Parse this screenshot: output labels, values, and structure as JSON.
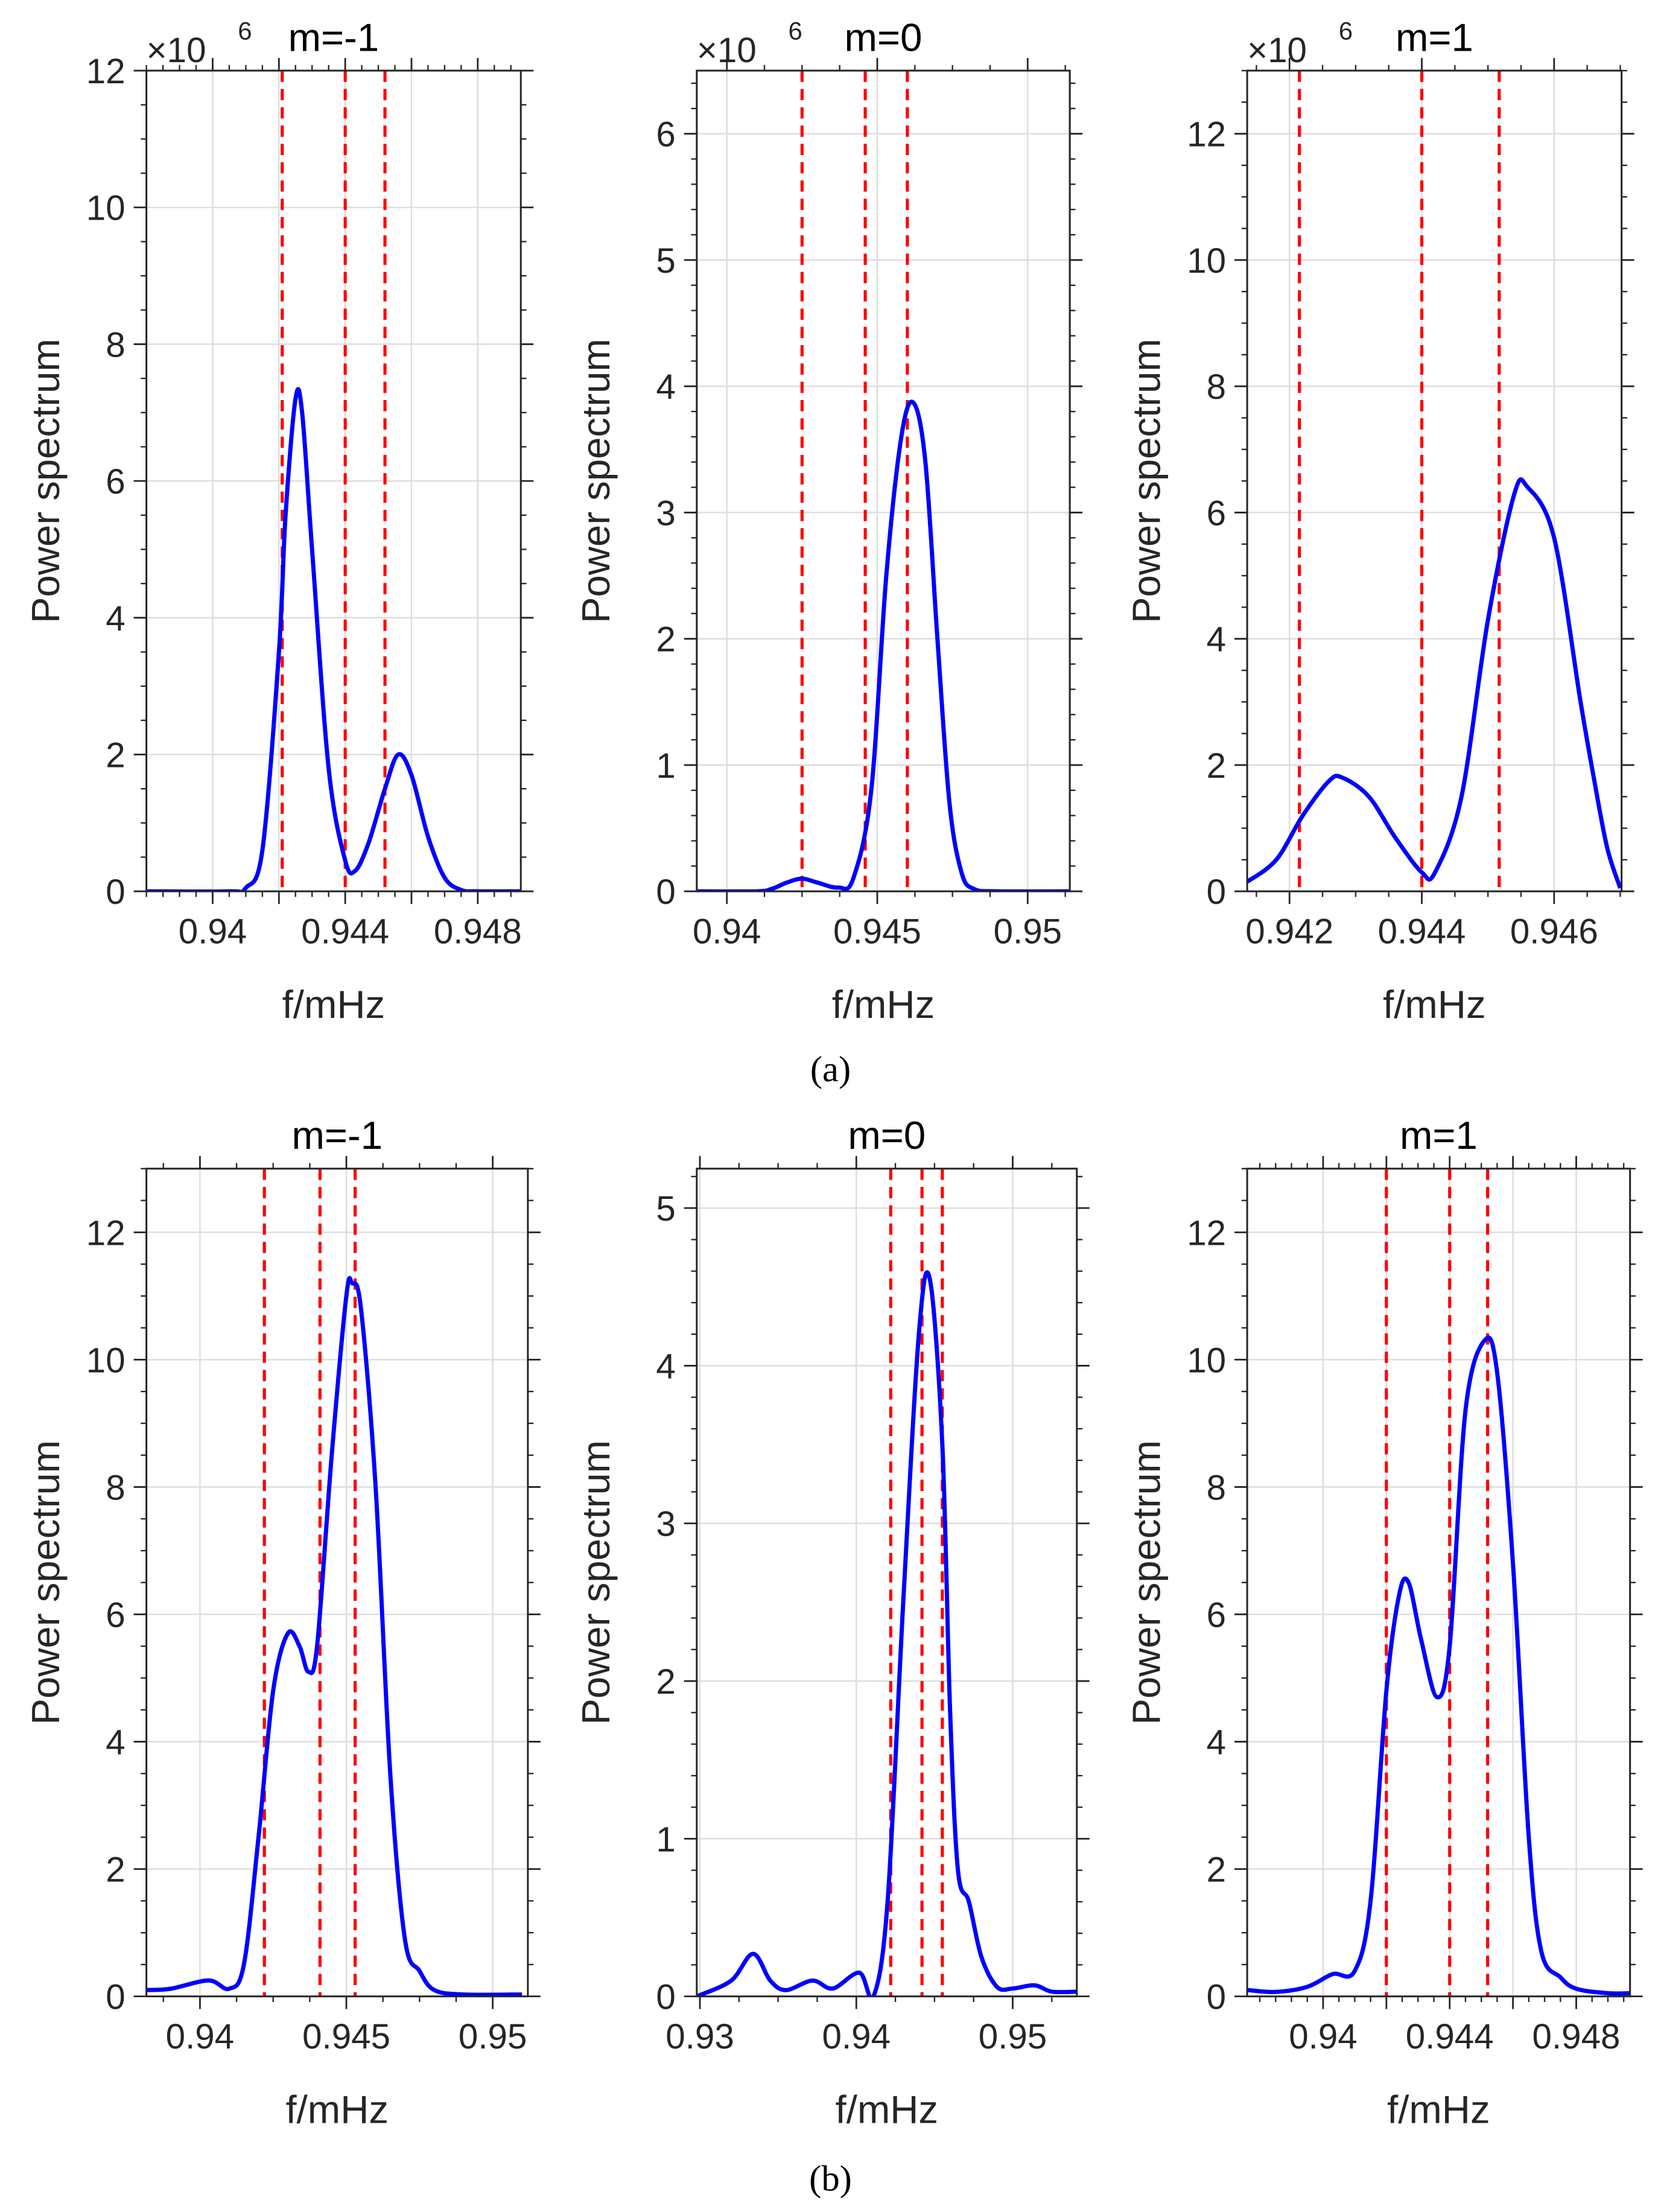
{
  "captions": [
    "(a)",
    "(b)"
  ],
  "colors": {
    "curve": "#0000ff",
    "marker_line": "#ff0000",
    "grid": "#dcdcdc",
    "axis": "#262626"
  },
  "chart_data": [
    {
      "type": "line",
      "title": "m=-1",
      "exponent": "×10",
      "exponent_power": "6",
      "xlabel": "f/mHz",
      "ylabel": "Power spectrum",
      "xlim": [
        0.938,
        0.9493
      ],
      "ylim": [
        0,
        12
      ],
      "xgrid": [
        0.94,
        0.942,
        0.944,
        0.946,
        0.948
      ],
      "xticks": [
        0.94,
        0.944,
        0.948
      ],
      "xtick_labels": [
        "0.94",
        "0.944",
        "0.948"
      ],
      "yticks": [
        0,
        2,
        4,
        6,
        8,
        10,
        12
      ],
      "ytick_labels": [
        "0",
        "2",
        "4",
        "6",
        "8",
        "10",
        "12"
      ],
      "vlines": [
        0.9421,
        0.944,
        0.9452
      ],
      "x": [
        0.938,
        0.9405,
        0.941,
        0.9415,
        0.942,
        0.9422,
        0.9425,
        0.9427,
        0.943,
        0.9435,
        0.944,
        0.9443,
        0.9447,
        0.9452,
        0.9456,
        0.946,
        0.9465,
        0.947,
        0.9475,
        0.948,
        0.9493
      ],
      "y": [
        0,
        0,
        0.05,
        0.6,
        3.5,
        5.5,
        7.2,
        7.0,
        5.0,
        1.8,
        0.45,
        0.3,
        0.7,
        1.5,
        2.0,
        1.7,
        0.8,
        0.2,
        0.02,
        0,
        0
      ]
    },
    {
      "type": "line",
      "title": "m=0",
      "exponent": "×10",
      "exponent_power": "6",
      "xlabel": "f/mHz",
      "ylabel": "Power spectrum",
      "xlim": [
        0.939,
        0.9514
      ],
      "ylim": [
        0,
        6.5
      ],
      "xgrid": [
        0.94,
        0.945,
        0.95
      ],
      "xticks": [
        0.94,
        0.945,
        0.95
      ],
      "xtick_labels": [
        "0.94",
        "0.945",
        "0.95"
      ],
      "yticks": [
        0,
        1,
        2,
        3,
        4,
        5,
        6
      ],
      "ytick_labels": [
        "0",
        "1",
        "2",
        "3",
        "4",
        "5",
        "6"
      ],
      "vlines": [
        0.9425,
        0.9446,
        0.946
      ],
      "x": [
        0.939,
        0.941,
        0.9415,
        0.942,
        0.9425,
        0.943,
        0.9437,
        0.9442,
        0.9448,
        0.9453,
        0.9458,
        0.9462,
        0.9466,
        0.947,
        0.9474,
        0.9478,
        0.9482,
        0.949,
        0.9514
      ],
      "y": [
        0,
        0,
        0.02,
        0.07,
        0.1,
        0.07,
        0.03,
        0.1,
        0.8,
        2.5,
        3.6,
        3.87,
        3.4,
        2.0,
        0.7,
        0.15,
        0.02,
        0,
        0
      ]
    },
    {
      "type": "line",
      "title": "m=1",
      "exponent": "×10",
      "exponent_power": "6",
      "xlabel": "f/mHz",
      "ylabel": "Power spectrum",
      "xlim": [
        0.94136,
        0.94702
      ],
      "ylim": [
        0,
        13
      ],
      "xgrid": [
        0.942,
        0.944,
        0.946
      ],
      "xticks": [
        0.942,
        0.944,
        0.946
      ],
      "xtick_labels": [
        "0.942",
        "0.944",
        "0.946"
      ],
      "yticks": [
        0,
        2,
        4,
        6,
        8,
        10,
        12
      ],
      "ytick_labels": [
        "0",
        "2",
        "4",
        "6",
        "8",
        "10",
        "12"
      ],
      "vlines": [
        0.94215,
        0.944,
        0.94517
      ],
      "x": [
        0.94136,
        0.9418,
        0.9422,
        0.9426,
        0.9428,
        0.9432,
        0.9436,
        0.944,
        0.9442,
        0.9446,
        0.945,
        0.9454,
        0.9456,
        0.946,
        0.9464,
        0.9466,
        0.9468,
        0.947
      ],
      "y": [
        0.15,
        0.5,
        1.2,
        1.75,
        1.8,
        1.5,
        0.85,
        0.3,
        0.3,
        1.5,
        4.3,
        6.3,
        6.4,
        5.6,
        3.0,
        1.8,
        0.7,
        0.05
      ]
    },
    {
      "type": "line",
      "title": "m=-1",
      "xlabel": "f/mHz",
      "ylabel": "Power spectrum",
      "xlim": [
        0.93817,
        0.9512
      ],
      "ylim": [
        0,
        13
      ],
      "xgrid": [
        0.94,
        0.945,
        0.95
      ],
      "xticks": [
        0.94,
        0.945,
        0.95
      ],
      "xtick_labels": [
        "0.94",
        "0.945",
        "0.95"
      ],
      "yticks": [
        0,
        2,
        4,
        6,
        8,
        10,
        12
      ],
      "ytick_labels": [
        "0",
        "2",
        "4",
        "6",
        "8",
        "10",
        "12"
      ],
      "vlines": [
        0.9422,
        0.9441,
        0.9453
      ],
      "x": [
        0.93817,
        0.939,
        0.9403,
        0.941,
        0.9415,
        0.942,
        0.9425,
        0.943,
        0.9434,
        0.9437,
        0.944,
        0.9445,
        0.945,
        0.9452,
        0.9455,
        0.946,
        0.9465,
        0.947,
        0.9475,
        0.948,
        0.949,
        0.951
      ],
      "y": [
        0.1,
        0.12,
        0.25,
        0.12,
        0.5,
        2.5,
        4.8,
        5.7,
        5.5,
        5.1,
        5.5,
        8.5,
        11.0,
        11.2,
        10.8,
        8,
        3.5,
        0.9,
        0.4,
        0.1,
        0.03,
        0.03
      ]
    },
    {
      "type": "line",
      "title": "m=0",
      "xlabel": "f/mHz",
      "ylabel": "Power spectrum",
      "xlim": [
        0.9298,
        0.9541
      ],
      "ylim": [
        0,
        5.25
      ],
      "xgrid": [
        0.93,
        0.94,
        0.95
      ],
      "xticks": [
        0.93,
        0.94,
        0.95
      ],
      "xtick_labels": [
        "0.93",
        "0.94",
        "0.95"
      ],
      "yticks": [
        0,
        1,
        2,
        3,
        4,
        5
      ],
      "ytick_labels": [
        "0",
        "1",
        "2",
        "3",
        "4",
        "5"
      ],
      "vlines": [
        0.9422,
        0.9442,
        0.9455
      ],
      "x": [
        0.9298,
        0.932,
        0.9334,
        0.9345,
        0.9355,
        0.9372,
        0.9385,
        0.9402,
        0.9411,
        0.942,
        0.943,
        0.944,
        0.9447,
        0.9455,
        0.946,
        0.9465,
        0.9472,
        0.948,
        0.949,
        0.95,
        0.9514,
        0.9525,
        0.9541
      ],
      "y": [
        0,
        0.1,
        0.27,
        0.1,
        0.04,
        0.1,
        0.05,
        0.15,
        0,
        0.6,
        2.5,
        4.2,
        4.55,
        3.5,
        1.8,
        0.8,
        0.6,
        0.25,
        0.06,
        0.05,
        0.07,
        0.03,
        0.03
      ]
    },
    {
      "type": "line",
      "title": "m=1",
      "xlabel": "f/mHz",
      "ylabel": "Power spectrum",
      "xlim": [
        0.9376,
        0.9497
      ],
      "ylim": [
        0,
        13
      ],
      "xgrid": [
        0.94,
        0.942,
        0.944,
        0.946,
        0.948
      ],
      "xticks": [
        0.94,
        0.944,
        0.948
      ],
      "xtick_labels": [
        "0.94",
        "0.944",
        "0.948"
      ],
      "yticks": [
        0,
        2,
        4,
        6,
        8,
        10,
        12
      ],
      "ytick_labels": [
        "0",
        "2",
        "4",
        "6",
        "8",
        "10",
        "12"
      ],
      "vlines": [
        0.942,
        0.944,
        0.9452
      ],
      "x": [
        0.9376,
        0.9385,
        0.9395,
        0.9403,
        0.941,
        0.9415,
        0.942,
        0.9424,
        0.9427,
        0.9431,
        0.9436,
        0.944,
        0.9445,
        0.9451,
        0.9455,
        0.946,
        0.9465,
        0.9469,
        0.9475,
        0.948,
        0.949,
        0.9497
      ],
      "y": [
        0.1,
        0.07,
        0.15,
        0.35,
        0.4,
        1.5,
        4.8,
        6.3,
        6.5,
        5.6,
        4.7,
        5.5,
        9.2,
        10.3,
        9.8,
        6.8,
        2.5,
        0.7,
        0.3,
        0.12,
        0.05,
        0.05
      ]
    }
  ]
}
